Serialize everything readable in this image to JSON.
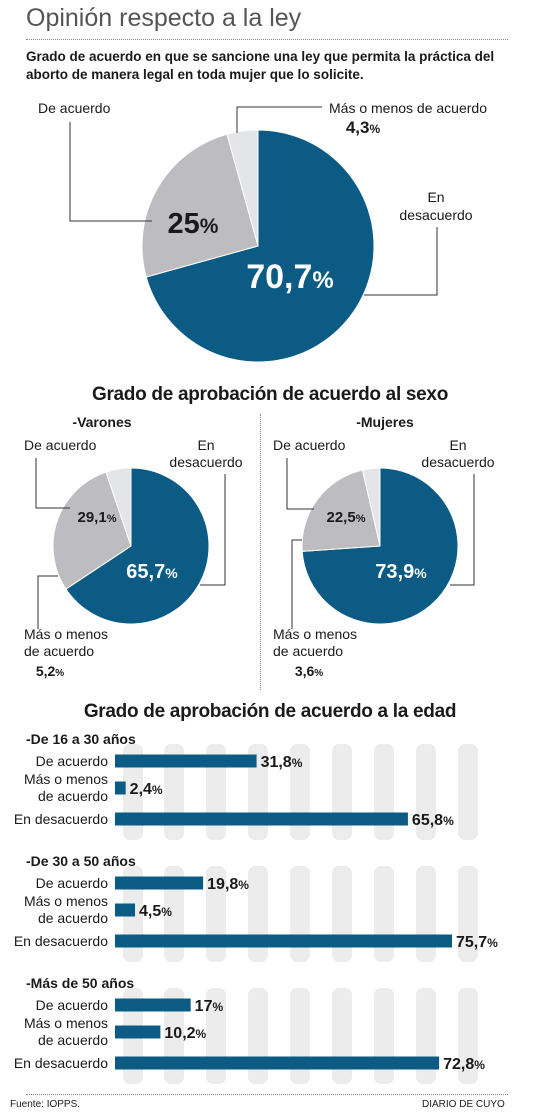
{
  "title": "Opinión respecto a la ley",
  "subtitle": "Grado de acuerdo en que se sancione una ley que permita la práctica del aborto de manera legal en toda mujer que lo solicite.",
  "colors": {
    "blue": "#0c5b85",
    "gray": "#bdbdc1",
    "light": "#e4e5e8",
    "track": "#ececec"
  },
  "chart_data": [
    {
      "type": "pie",
      "title": "Grado de acuerdo en que se sancione una ley que permita la práctica del aborto de manera legal en toda mujer que lo solicite.",
      "slices": [
        {
          "label": "En desacuerdo",
          "value": 70.7,
          "display": "70,7",
          "color": "#0c5b85"
        },
        {
          "label": "De acuerdo",
          "value": 25,
          "display": "25",
          "color": "#bdbdc1"
        },
        {
          "label": "Más o menos de acuerdo",
          "value": 4.3,
          "display": "4,3",
          "color": "#e4e5e8"
        }
      ]
    },
    {
      "type": "pie",
      "title": "Grado de aprobación de acuerdo al sexo",
      "subtitle": "-Varones",
      "slices": [
        {
          "label": "En desacuerdo",
          "value": 65.7,
          "display": "65,7",
          "color": "#0c5b85"
        },
        {
          "label": "De acuerdo",
          "value": 29.1,
          "display": "29,1",
          "color": "#bdbdc1"
        },
        {
          "label": "Más o menos de acuerdo",
          "value": 5.2,
          "display": "5,2",
          "color": "#e4e5e8"
        }
      ]
    },
    {
      "type": "pie",
      "title": "Grado de aprobación de acuerdo al sexo",
      "subtitle": "-Mujeres",
      "slices": [
        {
          "label": "En desacuerdo",
          "value": 73.9,
          "display": "73,9",
          "color": "#0c5b85"
        },
        {
          "label": "De acuerdo",
          "value": 22.5,
          "display": "22,5",
          "color": "#bdbdc1"
        },
        {
          "label": "Más o menos de acuerdo",
          "value": 3.6,
          "display": "3,6",
          "color": "#e4e5e8"
        }
      ]
    },
    {
      "type": "bar",
      "orientation": "horizontal",
      "title": "Grado de aprobación de acuerdo a la edad",
      "xlim": [
        0,
        80
      ],
      "groups": [
        {
          "name": "-De 16 a 30 años",
          "categories": [
            "De acuerdo",
            "Más o menos de acuerdo",
            "En desacuerdo"
          ],
          "values": [
            31.8,
            2.4,
            65.8
          ],
          "display": [
            "31,8",
            "2,4",
            "65,8"
          ]
        },
        {
          "name": "-De 30 a 50 años",
          "categories": [
            "De acuerdo",
            "Más o menos de acuerdo",
            "En desacuerdo"
          ],
          "values": [
            19.8,
            4.5,
            75.7
          ],
          "display": [
            "19,8",
            "4,5",
            "75,7"
          ]
        },
        {
          "name": "-Más de 50 años",
          "categories": [
            "De acuerdo",
            "Más o menos de acuerdo",
            "En desacuerdo"
          ],
          "values": [
            17,
            10.2,
            72.8
          ],
          "display": [
            "17",
            "10,2",
            "72,8"
          ]
        }
      ]
    }
  ],
  "labels": {
    "main": {
      "de_acuerdo": "De acuerdo",
      "mas_menos": "Más o menos de acuerdo",
      "desacuerdo_l1": "En",
      "desacuerdo_l2": "desacuerdo"
    },
    "small": {
      "de_acuerdo": "De acuerdo",
      "desacuerdo_l1": "En",
      "desacuerdo_l2": "desacuerdo",
      "mas_menos_l1": "Más o menos",
      "mas_menos_l2": "de acuerdo"
    },
    "bar_cats": [
      "De acuerdo",
      "Más o menos",
      "de acuerdo",
      "En desacuerdo"
    ]
  },
  "section_sexo": "Grado de aprobación de acuerdo al sexo",
  "section_edad": "Grado de aprobación de acuerdo a la edad",
  "percent_sign": "%",
  "footer": {
    "source": "Fuente: IOPPS.",
    "brand": "DIARIO DE CUYO"
  }
}
